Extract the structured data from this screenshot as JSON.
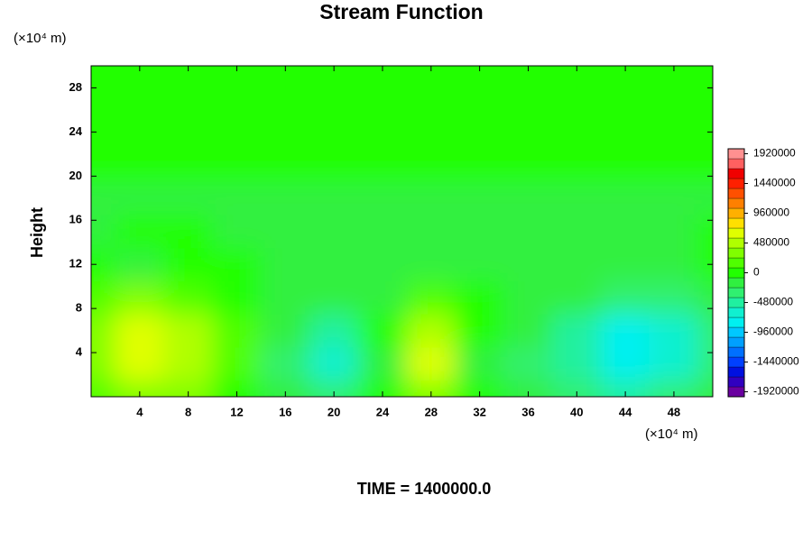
{
  "chart_data": {
    "type": "contour",
    "title": "Stream Function",
    "ylabel": "Height",
    "x_unit": "(×10⁴ m)",
    "y_unit": "(×10⁴ m)",
    "footer": "TIME = 1400000.0",
    "xlim": [
      0,
      51.2
    ],
    "ylim": [
      0,
      30
    ],
    "xticks": [
      4,
      8,
      12,
      16,
      20,
      24,
      28,
      32,
      36,
      40,
      44,
      48
    ],
    "yticks": [
      4,
      8,
      12,
      16,
      20,
      24,
      28
    ],
    "x": [
      0,
      4,
      8,
      12,
      16,
      20,
      24,
      28,
      32,
      36,
      40,
      44,
      48,
      52
    ],
    "y": [
      0,
      3,
      6,
      9,
      12,
      15,
      18,
      21,
      24,
      27,
      30
    ],
    "z": [
      [
        150000,
        300000,
        250000,
        50000,
        -150000,
        -350000,
        -50000,
        300000,
        -50000,
        -200000,
        -350000,
        -500000,
        -400000,
        -200000
      ],
      [
        300000,
        650000,
        500000,
        150000,
        -300000,
        -700000,
        -100000,
        600000,
        -100000,
        -300000,
        -550000,
        -850000,
        -700000,
        -350000
      ],
      [
        250000,
        600000,
        450000,
        200000,
        -200000,
        -450000,
        -50000,
        400000,
        -50000,
        -150000,
        -450000,
        -750000,
        -600000,
        -300000
      ],
      [
        100000,
        250000,
        200000,
        50000,
        -100000,
        -200000,
        -100000,
        150000,
        -50000,
        -100000,
        -200000,
        -350000,
        -300000,
        -150000
      ],
      [
        -50000,
        -100000,
        -80000,
        -50000,
        -100000,
        -150000,
        -150000,
        -150000,
        -200000,
        -150000,
        -150000,
        -150000,
        -100000,
        -80000
      ],
      [
        -100000,
        -80000,
        -80000,
        -100000,
        -120000,
        -150000,
        -200000,
        -200000,
        -150000,
        -120000,
        -100000,
        -100000,
        -100000,
        -80000
      ],
      [
        -100000,
        -100000,
        -100000,
        -100000,
        -100000,
        -100000,
        -100000,
        -100000,
        -100000,
        -100000,
        -100000,
        -100000,
        -100000,
        -100000
      ],
      [
        0,
        0,
        0,
        0,
        0,
        0,
        0,
        0,
        0,
        0,
        0,
        0,
        0,
        0
      ],
      [
        0,
        0,
        0,
        0,
        0,
        0,
        0,
        0,
        0,
        0,
        0,
        0,
        0,
        0
      ],
      [
        0,
        0,
        0,
        0,
        0,
        0,
        0,
        0,
        0,
        0,
        0,
        0,
        0,
        0
      ],
      [
        0,
        0,
        0,
        0,
        0,
        0,
        0,
        0,
        0,
        0,
        0,
        0,
        0,
        0
      ]
    ],
    "colorbar": {
      "clim": [
        -2000000,
        2000000
      ],
      "ticks": [
        -1920000,
        -1440000,
        -960000,
        -480000,
        0,
        480000,
        960000,
        1440000,
        1920000
      ],
      "colors": [
        "#6a00a0",
        "#3000c0",
        "#0010e0",
        "#0040ff",
        "#0070ff",
        "#00a0ff",
        "#00c8ff",
        "#00f0f0",
        "#10f0d0",
        "#20f0a0",
        "#30f070",
        "#30f040",
        "#22ff00",
        "#50ff00",
        "#80ff00",
        "#b0ff00",
        "#e0ff00",
        "#ffe000",
        "#ffb000",
        "#ff8000",
        "#ff5000",
        "#ff2000",
        "#f00000",
        "#ff6060",
        "#ff9090"
      ]
    }
  }
}
